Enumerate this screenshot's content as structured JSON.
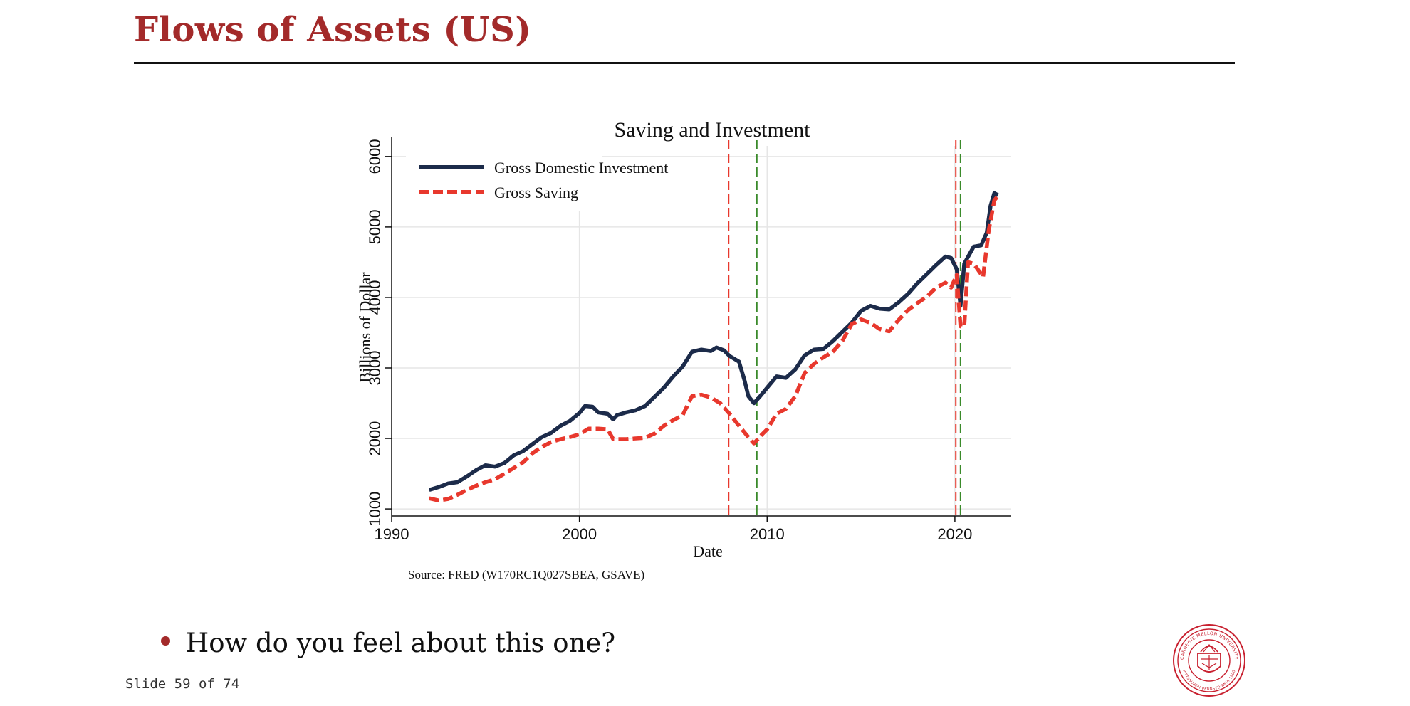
{
  "slide": {
    "title": "Flows of Assets (US)",
    "bullet": "How do you feel about this one?",
    "counter": "Slide 59 of 74"
  },
  "logo": {
    "name": "Carnegie Mellon University seal",
    "text_top": "CARNEGIE MELLON UNIVERSITY",
    "text_bottom": "PITTSBURGH PENNSYLVANIA 1900",
    "color": "#c8202f"
  },
  "colors": {
    "title": "#a32a2a",
    "investment": "#1c2b4a",
    "saving": "#e8382d",
    "recession_start": "#e8382d",
    "recession_end": "#3a8a2a"
  },
  "chart_data": {
    "type": "line",
    "title": "Saving and Investment",
    "xlabel": "Date",
    "ylabel": "Billions of Dollar",
    "source_note": "Source: FRED (W170RC1Q027SBEA, GSAVE)",
    "xlim": [
      1990,
      2023
    ],
    "ylim": [
      900,
      6150
    ],
    "x_ticks": [
      1990,
      2000,
      2010,
      2020
    ],
    "y_ticks": [
      1000,
      2000,
      3000,
      4000,
      5000,
      6000
    ],
    "grid": true,
    "legend_position": "top-left",
    "vertical_lines": [
      {
        "x": 2007.95,
        "color": "#e8382d"
      },
      {
        "x": 2009.45,
        "color": "#3a8a2a"
      },
      {
        "x": 2020.05,
        "color": "#e8382d"
      },
      {
        "x": 2020.3,
        "color": "#3a8a2a"
      }
    ],
    "series": [
      {
        "name": "Gross Domestic Investment",
        "style": "solid",
        "points": [
          [
            1992.0,
            1270
          ],
          [
            1992.5,
            1310
          ],
          [
            1993.0,
            1360
          ],
          [
            1993.5,
            1380
          ],
          [
            1994.0,
            1460
          ],
          [
            1994.5,
            1550
          ],
          [
            1995.0,
            1620
          ],
          [
            1995.5,
            1600
          ],
          [
            1996.0,
            1650
          ],
          [
            1996.5,
            1760
          ],
          [
            1997.0,
            1820
          ],
          [
            1997.5,
            1920
          ],
          [
            1998.0,
            2020
          ],
          [
            1998.5,
            2080
          ],
          [
            1999.0,
            2180
          ],
          [
            1999.5,
            2250
          ],
          [
            2000.0,
            2360
          ],
          [
            2000.3,
            2460
          ],
          [
            2000.7,
            2450
          ],
          [
            2001.0,
            2370
          ],
          [
            2001.5,
            2350
          ],
          [
            2001.8,
            2270
          ],
          [
            2002.0,
            2330
          ],
          [
            2002.5,
            2370
          ],
          [
            2003.0,
            2400
          ],
          [
            2003.5,
            2460
          ],
          [
            2004.0,
            2590
          ],
          [
            2004.5,
            2720
          ],
          [
            2005.0,
            2880
          ],
          [
            2005.5,
            3020
          ],
          [
            2006.0,
            3230
          ],
          [
            2006.5,
            3260
          ],
          [
            2007.0,
            3240
          ],
          [
            2007.3,
            3290
          ],
          [
            2007.7,
            3250
          ],
          [
            2008.0,
            3170
          ],
          [
            2008.5,
            3090
          ],
          [
            2008.8,
            2820
          ],
          [
            2009.0,
            2600
          ],
          [
            2009.3,
            2500
          ],
          [
            2009.6,
            2590
          ],
          [
            2010.0,
            2720
          ],
          [
            2010.5,
            2880
          ],
          [
            2011.0,
            2860
          ],
          [
            2011.5,
            2980
          ],
          [
            2012.0,
            3180
          ],
          [
            2012.5,
            3260
          ],
          [
            2013.0,
            3270
          ],
          [
            2013.5,
            3380
          ],
          [
            2014.0,
            3510
          ],
          [
            2014.5,
            3640
          ],
          [
            2015.0,
            3810
          ],
          [
            2015.5,
            3880
          ],
          [
            2016.0,
            3840
          ],
          [
            2016.5,
            3830
          ],
          [
            2017.0,
            3930
          ],
          [
            2017.5,
            4050
          ],
          [
            2018.0,
            4200
          ],
          [
            2018.5,
            4330
          ],
          [
            2019.0,
            4460
          ],
          [
            2019.5,
            4580
          ],
          [
            2019.8,
            4560
          ],
          [
            2020.1,
            4400
          ],
          [
            2020.3,
            3880
          ],
          [
            2020.5,
            4480
          ],
          [
            2021.0,
            4720
          ],
          [
            2021.4,
            4740
          ],
          [
            2021.7,
            4920
          ],
          [
            2021.9,
            5300
          ],
          [
            2022.1,
            5480
          ],
          [
            2022.3,
            5450
          ]
        ]
      },
      {
        "name": "Gross Saving",
        "style": "dashed",
        "points": [
          [
            1992.0,
            1150
          ],
          [
            1992.5,
            1120
          ],
          [
            1993.0,
            1140
          ],
          [
            1993.5,
            1200
          ],
          [
            1994.0,
            1270
          ],
          [
            1994.5,
            1330
          ],
          [
            1995.0,
            1380
          ],
          [
            1995.5,
            1420
          ],
          [
            1996.0,
            1500
          ],
          [
            1996.5,
            1580
          ],
          [
            1997.0,
            1660
          ],
          [
            1997.5,
            1790
          ],
          [
            1998.0,
            1880
          ],
          [
            1998.5,
            1950
          ],
          [
            1999.0,
            1990
          ],
          [
            1999.5,
            2020
          ],
          [
            2000.0,
            2060
          ],
          [
            2000.5,
            2140
          ],
          [
            2001.0,
            2140
          ],
          [
            2001.5,
            2130
          ],
          [
            2001.8,
            1990
          ],
          [
            2002.5,
            1990
          ],
          [
            2003.0,
            2000
          ],
          [
            2003.5,
            2010
          ],
          [
            2004.0,
            2070
          ],
          [
            2004.5,
            2180
          ],
          [
            2005.0,
            2260
          ],
          [
            2005.5,
            2330
          ],
          [
            2006.0,
            2600
          ],
          [
            2006.5,
            2620
          ],
          [
            2007.0,
            2580
          ],
          [
            2007.5,
            2500
          ],
          [
            2008.0,
            2350
          ],
          [
            2008.5,
            2180
          ],
          [
            2009.0,
            2020
          ],
          [
            2009.3,
            1930
          ],
          [
            2009.7,
            2050
          ],
          [
            2010.0,
            2130
          ],
          [
            2010.5,
            2350
          ],
          [
            2011.0,
            2420
          ],
          [
            2011.5,
            2600
          ],
          [
            2012.0,
            2930
          ],
          [
            2012.5,
            3060
          ],
          [
            2013.0,
            3150
          ],
          [
            2013.5,
            3230
          ],
          [
            2014.0,
            3380
          ],
          [
            2014.5,
            3620
          ],
          [
            2015.0,
            3690
          ],
          [
            2015.5,
            3640
          ],
          [
            2016.0,
            3550
          ],
          [
            2016.5,
            3520
          ],
          [
            2017.0,
            3680
          ],
          [
            2017.5,
            3820
          ],
          [
            2018.0,
            3920
          ],
          [
            2018.5,
            4010
          ],
          [
            2019.0,
            4140
          ],
          [
            2019.5,
            4210
          ],
          [
            2019.8,
            4140
          ],
          [
            2020.1,
            4320
          ],
          [
            2020.3,
            3590
          ],
          [
            2020.5,
            3600
          ],
          [
            2020.7,
            4500
          ],
          [
            2021.0,
            4480
          ],
          [
            2021.5,
            4290
          ],
          [
            2021.8,
            4950
          ],
          [
            2022.1,
            5380
          ],
          [
            2022.3,
            5440
          ]
        ]
      }
    ]
  }
}
